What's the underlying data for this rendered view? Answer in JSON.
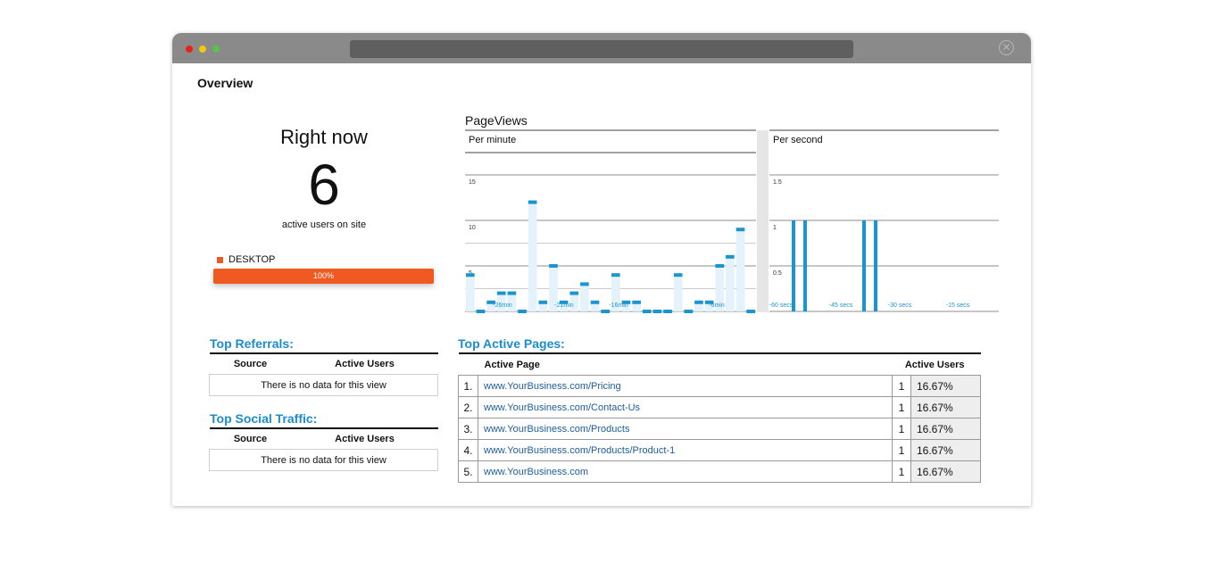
{
  "page": {
    "title": "Overview"
  },
  "right_now": {
    "title": "Right now",
    "count": "6",
    "subtitle": "active users on site",
    "device_label": "DESKTOP",
    "device_percent_label": "100%",
    "device_share": 1.0,
    "color": "#f05a22"
  },
  "pageviews": {
    "title": "PageViews"
  },
  "chart_data": [
    {
      "type": "bar",
      "title": "Per minute",
      "ylim": [
        0,
        15
      ],
      "yticks": [
        "15",
        "10",
        "5"
      ],
      "xtick_labels": [
        "-26min",
        "-21min",
        "-16min",
        "-6min"
      ],
      "values": [
        4,
        0,
        1,
        2,
        2,
        0,
        12,
        1,
        5,
        1,
        2,
        3,
        1,
        0,
        4,
        1,
        1,
        0,
        0,
        0,
        4,
        0,
        1,
        1,
        5,
        6,
        9,
        0
      ],
      "color": "#1a95d2",
      "grid": true
    },
    {
      "type": "bar",
      "title": "Per second",
      "ylim": [
        0,
        1.5
      ],
      "yticks": [
        "1.5",
        "1",
        "0.5"
      ],
      "xtick_labels": [
        "-60 secs",
        "-45 secs",
        "-30 secs",
        "-15 secs"
      ],
      "values": [
        1,
        1,
        1,
        1
      ],
      "color": "#1a95d2",
      "grid": true
    }
  ],
  "top_referrals": {
    "title": "Top Referrals:",
    "col_source": "Source",
    "col_users": "Active Users",
    "empty_text": "There is no data for this view"
  },
  "top_social": {
    "title": "Top Social Traffic:",
    "col_source": "Source",
    "col_users": "Active Users",
    "empty_text": "There is no data for this view"
  },
  "top_pages": {
    "title": "Top Active Pages:",
    "col_page": "Active Page",
    "col_users": "Active Users",
    "rows": [
      {
        "num": "1.",
        "url": "www.YourBusiness.com/Pricing",
        "count": "1",
        "pct": "16.67%"
      },
      {
        "num": "2.",
        "url": "www.YourBusiness.com/Contact-Us",
        "count": "1",
        "pct": "16.67%"
      },
      {
        "num": "3.",
        "url": "www.YourBusiness.com/Products",
        "count": "1",
        "pct": "16.67%"
      },
      {
        "num": "4.",
        "url": "www.YourBusiness.com/Products/Product-1",
        "count": "1",
        "pct": "16.67%"
      },
      {
        "num": "5.",
        "url": "www.YourBusiness.com",
        "count": "1",
        "pct": "16.67%"
      }
    ]
  }
}
